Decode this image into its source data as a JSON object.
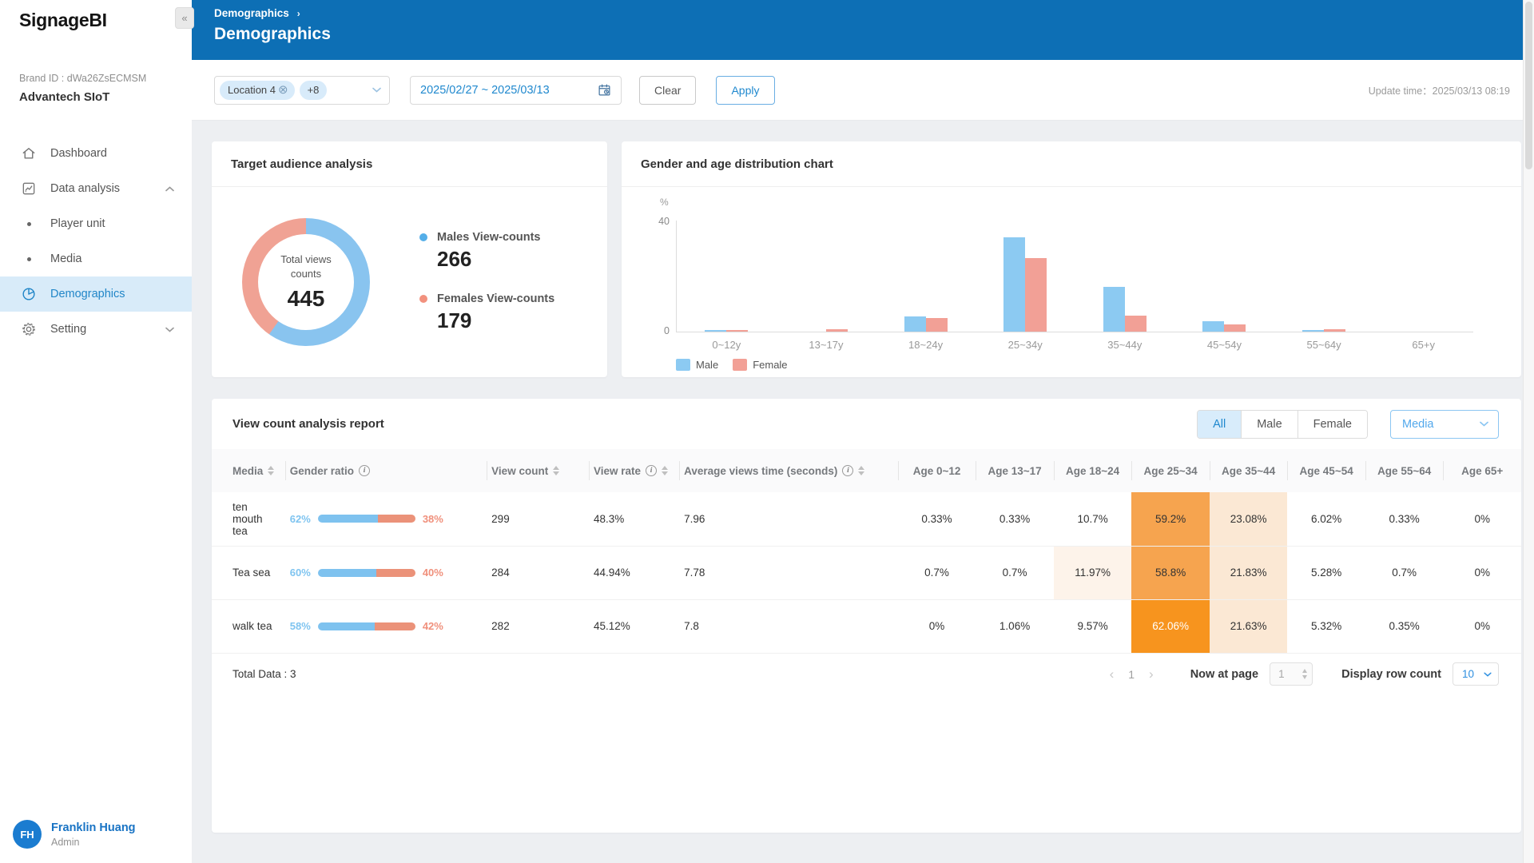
{
  "app": {
    "logo": "SignageBI",
    "collapse_icon": "«",
    "brand_id_label": "Brand ID : dWa26ZsECMSM",
    "brand_name": "Advantech SIoT"
  },
  "sidebar": {
    "items": [
      {
        "label": "Dashboard",
        "icon": "home-icon"
      },
      {
        "label": "Data analysis",
        "icon": "chart-icon",
        "expanded": true
      },
      {
        "label": "Player unit",
        "icon": "bullet"
      },
      {
        "label": "Media",
        "icon": "bullet"
      },
      {
        "label": "Demographics",
        "icon": "pie-icon",
        "active": true
      },
      {
        "label": "Setting",
        "icon": "gear-icon",
        "expanded": false
      }
    ],
    "user": {
      "initials": "FH",
      "name": "Franklin Huang",
      "role": "Admin"
    }
  },
  "header": {
    "breadcrumb": "Demographics",
    "crumb_sep": "›",
    "title": "Demographics"
  },
  "filters": {
    "location_tag": "Location 4",
    "tag_close_icon": "⊗",
    "more_tag": "+8",
    "date_range": "2025/02/27 ~ 2025/03/13",
    "clear_label": "Clear",
    "apply_label": "Apply",
    "update_time": "Update time：2025/03/13 08:19"
  },
  "audience_card": {
    "title": "Target audience analysis",
    "donut": {
      "center_label": "Total views counts",
      "center_value": "445",
      "male_value": 266,
      "female_value": 179,
      "male_color": "#89C4EF",
      "female_color": "#F0A294"
    },
    "legend": [
      {
        "label": "Males View-counts",
        "value": "266",
        "color": "#54AEE8"
      },
      {
        "label": "Females View-counts",
        "value": "179",
        "color": "#F2917E"
      }
    ]
  },
  "chart_data": {
    "type": "bar",
    "title": "Gender and age distribution chart",
    "categories": [
      "0~12y",
      "13~17y",
      "18~24y",
      "25~34y",
      "35~44y",
      "45~54y",
      "55~64y",
      "65+y"
    ],
    "series": [
      {
        "name": "Male",
        "color": "#8CCAF2",
        "values": [
          0.5,
          0,
          5.5,
          34,
          16,
          3.8,
          0.5,
          0
        ]
      },
      {
        "name": "Female",
        "color": "#F2A096",
        "values": [
          0.5,
          0.8,
          4.8,
          26.5,
          5.8,
          2.5,
          0.8,
          0
        ]
      }
    ],
    "ylabel": "%",
    "ylim": [
      0,
      40
    ],
    "grid": false,
    "legend_position": "bottom-left"
  },
  "report": {
    "title": "View count analysis report",
    "gender_filter": [
      "All",
      "Male",
      "Female"
    ],
    "gender_filter_active": "All",
    "media_select": "Media",
    "columns": [
      {
        "label": "Media",
        "sort": true
      },
      {
        "label": "Gender ratio",
        "info": true
      },
      {
        "label": "View count",
        "sort": true
      },
      {
        "label": "View rate",
        "info": true,
        "sort": true
      },
      {
        "label": "Average views time (seconds)",
        "info": true,
        "sort": true
      },
      {
        "label": "Age 0~12"
      },
      {
        "label": "Age 13~17"
      },
      {
        "label": "Age 18~24"
      },
      {
        "label": "Age 25~34"
      },
      {
        "label": "Age 35~44"
      },
      {
        "label": "Age 45~54"
      },
      {
        "label": "Age 55~64"
      },
      {
        "label": "Age 65+"
      }
    ],
    "highlight_colors": {
      "faint": "#FDF3EA",
      "light": "#FBE8D4",
      "medium": "#F6A44F",
      "dark": "#F7941E"
    },
    "rows": [
      {
        "media": "ten mouth tea",
        "male_ratio": "62%",
        "female_ratio": "38%",
        "male_ratio_pct": 62,
        "view_count": "299",
        "view_rate": "48.3%",
        "avg_time": "7.96",
        "ages": [
          "0.33%",
          "0.33%",
          "10.7%",
          "59.2%",
          "23.08%",
          "6.02%",
          "0.33%",
          "0%"
        ],
        "age_highlight": [
          "none",
          "none",
          "none",
          "medium",
          "light",
          "none",
          "none",
          "none"
        ]
      },
      {
        "media": "Tea sea",
        "male_ratio": "60%",
        "female_ratio": "40%",
        "male_ratio_pct": 60,
        "view_count": "284",
        "view_rate": "44.94%",
        "avg_time": "7.78",
        "ages": [
          "0.7%",
          "0.7%",
          "11.97%",
          "58.8%",
          "21.83%",
          "5.28%",
          "0.7%",
          "0%"
        ],
        "age_highlight": [
          "none",
          "none",
          "faint",
          "medium",
          "light",
          "none",
          "none",
          "none"
        ]
      },
      {
        "media": "walk tea",
        "male_ratio": "58%",
        "female_ratio": "42%",
        "male_ratio_pct": 58,
        "view_count": "282",
        "view_rate": "45.12%",
        "avg_time": "7.8",
        "ages": [
          "0%",
          "1.06%",
          "9.57%",
          "62.06%",
          "21.63%",
          "5.32%",
          "0.35%",
          "0%"
        ],
        "age_highlight": [
          "none",
          "none",
          "none",
          "dark",
          "light",
          "none",
          "none",
          "none"
        ]
      }
    ],
    "footer": {
      "total": "Total Data : 3",
      "prev": "‹",
      "page": "1",
      "next": "›",
      "now_at_page_label": "Now at page",
      "page_input": "1",
      "display_row_label": "Display row count",
      "row_count": "10"
    }
  }
}
